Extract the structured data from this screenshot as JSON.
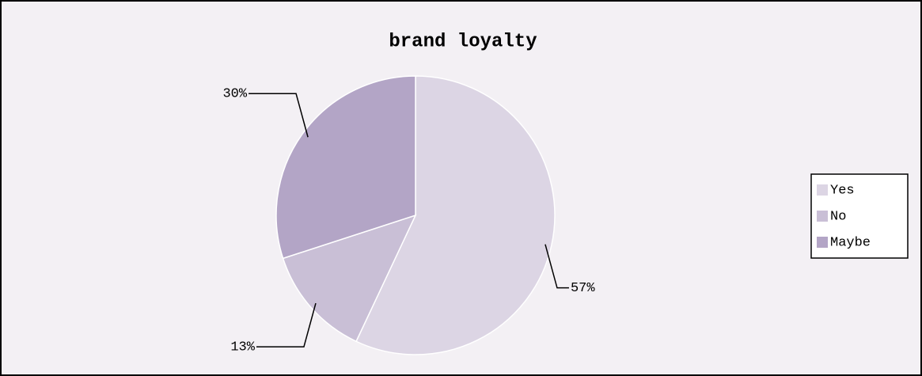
{
  "chart_data": {
    "type": "pie",
    "title": "brand loyalty",
    "categories": [
      "Yes",
      "No",
      "Maybe"
    ],
    "values": [
      57,
      13,
      30
    ],
    "value_labels": [
      "57%",
      "13%",
      "30%"
    ],
    "colors": [
      "#dcd5e4",
      "#c9bfd6",
      "#b3a5c6"
    ],
    "legend": "right"
  }
}
